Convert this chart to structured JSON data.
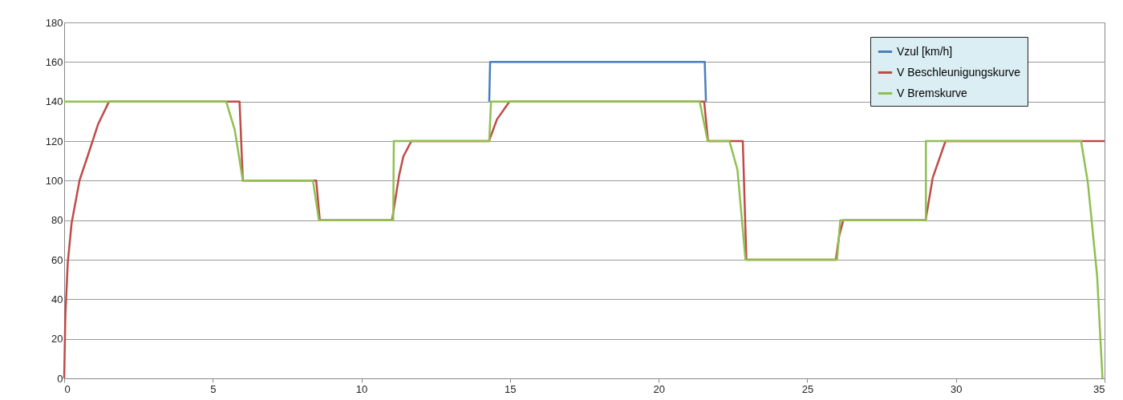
{
  "chart_data": {
    "type": "line",
    "xlim": [
      0,
      35
    ],
    "xticks": [
      0,
      5,
      10,
      15,
      20,
      25,
      30,
      35
    ],
    "ylim": [
      0,
      180
    ],
    "yticks": [
      0,
      20,
      40,
      60,
      80,
      100,
      120,
      140,
      160,
      180
    ],
    "grid": "y",
    "legend": "top right",
    "marker": "none",
    "line_style": "solid",
    "series": [
      {
        "name": "Vzul [km/h]",
        "color": "#4a7ebb",
        "x": [
          14.3,
          14.33,
          21.55,
          21.59
        ],
        "values": [
          140,
          160,
          160,
          140
        ]
      },
      {
        "name": "V Beschleunigungskurve",
        "color": "#be4b48",
        "x": [
          0,
          0.04,
          0.12,
          0.25,
          0.52,
          0.79,
          1.14,
          1.51,
          5.9,
          6.01,
          8.48,
          8.6,
          11.03,
          11.27,
          11.41,
          11.68,
          14.29,
          14.56,
          14.98,
          21.53,
          21.66,
          22.83,
          22.95,
          25.96,
          26.07,
          26.21,
          28.98,
          29.22,
          29.65,
          35
        ],
        "values": [
          0,
          31.7,
          58.3,
          78.5,
          100.3,
          112.4,
          128.5,
          140,
          140,
          100,
          100,
          80,
          80,
          102.8,
          112.2,
          120,
          120,
          131,
          140,
          140,
          120,
          120,
          60,
          60,
          71.9,
          80,
          80,
          101.5,
          120,
          120
        ]
      },
      {
        "name": "V Bremskurve",
        "color": "#8fc04f",
        "x": [
          0,
          5.45,
          5.74,
          6.01,
          8.37,
          8.57,
          11.07,
          11.09,
          14.3,
          14.36,
          21.38,
          21.65,
          22.38,
          22.65,
          22.92,
          26.0,
          26.11,
          28.99,
          28.99,
          34.21,
          34.44,
          34.75,
          34.93
        ],
        "values": [
          140,
          140,
          125.6,
          100,
          100,
          80,
          80,
          120,
          120,
          140,
          140,
          120,
          120,
          105.5,
          60,
          60,
          80,
          80,
          120,
          120,
          98.8,
          51.8,
          0
        ]
      }
    ]
  }
}
